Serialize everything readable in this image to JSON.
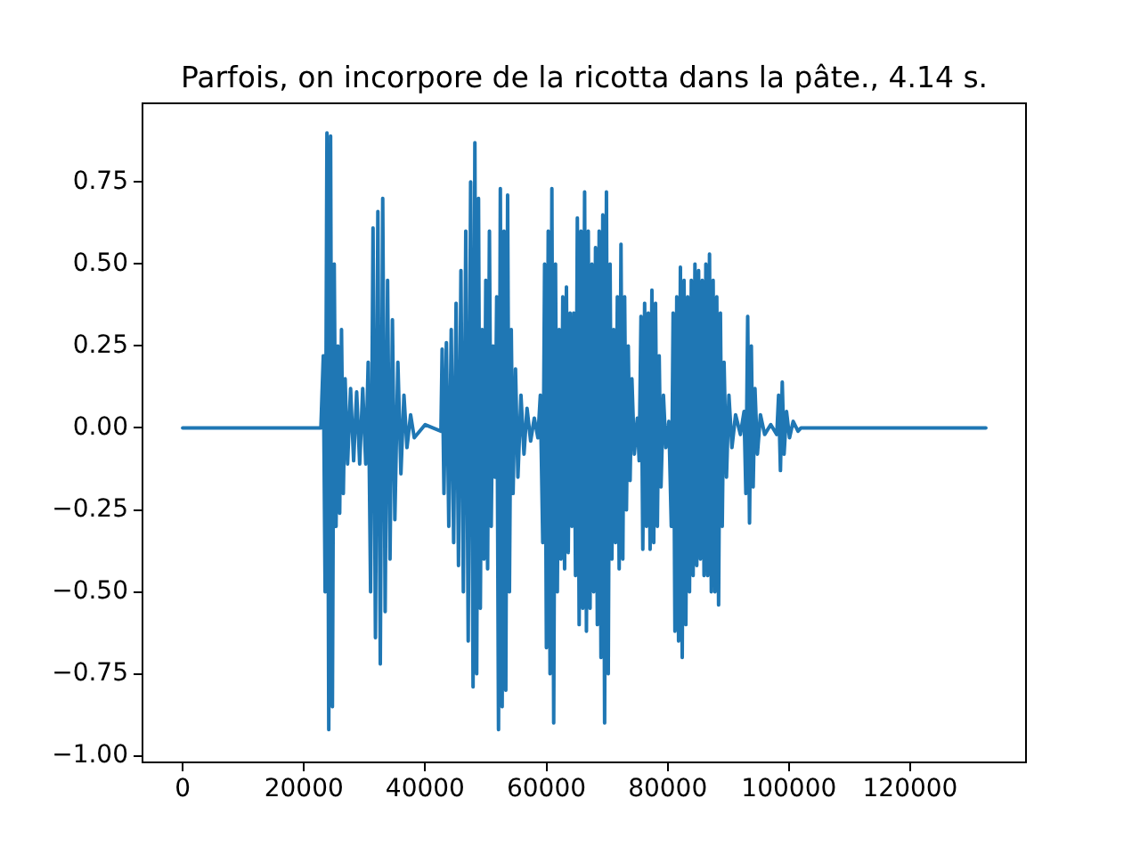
{
  "chart_data": {
    "type": "line",
    "title": "Parfois, on incorpore de la ricotta dans la pâte., 4.14 s.",
    "color": "#1f77b4",
    "x": [
      0,
      22800,
      23200,
      23500,
      23800,
      24100,
      24400,
      24700,
      25000,
      25300,
      25600,
      25900,
      26200,
      26500,
      26800,
      27200,
      27700,
      28200,
      28700,
      29200,
      29700,
      30200,
      30600,
      31000,
      31400,
      31800,
      32200,
      32600,
      33000,
      33400,
      33800,
      34200,
      34600,
      35000,
      35500,
      36000,
      36500,
      37000,
      37600,
      38200,
      40000,
      42600,
      42800,
      43100,
      43500,
      43900,
      44300,
      44700,
      45100,
      45500,
      45900,
      46300,
      46700,
      47100,
      47500,
      47900,
      48200,
      48500,
      48800,
      49100,
      49400,
      49700,
      50000,
      50300,
      50600,
      50900,
      51200,
      51500,
      51800,
      52100,
      52400,
      52700,
      53000,
      53300,
      53600,
      53900,
      54200,
      54500,
      54900,
      55300,
      55800,
      56300,
      56800,
      57400,
      58000,
      58600,
      59000,
      59400,
      59700,
      60000,
      60300,
      60600,
      60900,
      61200,
      61500,
      61800,
      62100,
      62400,
      62700,
      63000,
      63300,
      63600,
      63900,
      64200,
      64500,
      64800,
      65100,
      65400,
      65700,
      66000,
      66300,
      66600,
      66900,
      67200,
      67500,
      67800,
      68100,
      68400,
      68700,
      69000,
      69300,
      69600,
      69900,
      70200,
      70500,
      70800,
      71100,
      71400,
      71700,
      72000,
      72300,
      72600,
      72900,
      73200,
      73500,
      73800,
      74100,
      74500,
      75000,
      75300,
      75600,
      75900,
      76200,
      76500,
      76800,
      77100,
      77400,
      77700,
      78000,
      78300,
      78600,
      78900,
      79300,
      79700,
      80200,
      80600,
      80900,
      81200,
      81500,
      81800,
      82100,
      82400,
      82700,
      83000,
      83300,
      83600,
      83900,
      84200,
      84500,
      84800,
      85100,
      85400,
      85700,
      86000,
      86300,
      86600,
      86900,
      87200,
      87500,
      87800,
      88100,
      88400,
      88700,
      89000,
      89300,
      89700,
      90100,
      90600,
      91200,
      92000,
      92600,
      92900,
      93200,
      93500,
      93800,
      94100,
      94400,
      94800,
      95300,
      96000,
      97000,
      98000,
      98300,
      98600,
      98900,
      99200,
      99600,
      100100,
      100700,
      101500,
      102000,
      132480
    ],
    "values": [
      0,
      0,
      0.22,
      -0.5,
      0.9,
      -0.92,
      0.89,
      -0.85,
      0.5,
      -0.3,
      0.25,
      -0.26,
      0.3,
      -0.2,
      0.15,
      -0.11,
      0.12,
      -0.1,
      0.11,
      -0.11,
      0.12,
      -0.11,
      0.2,
      -0.5,
      0.61,
      -0.64,
      0.66,
      -0.72,
      0.7,
      -0.56,
      0.45,
      -0.4,
      0.33,
      -0.28,
      0.2,
      -0.14,
      0.1,
      -0.06,
      0.04,
      -0.03,
      0.01,
      -0.01,
      0.24,
      -0.2,
      0.26,
      -0.3,
      0.3,
      -0.35,
      0.38,
      -0.42,
      0.48,
      -0.5,
      0.6,
      -0.65,
      0.75,
      -0.79,
      0.87,
      -0.75,
      0.7,
      -0.55,
      0.3,
      -0.4,
      0.45,
      -0.43,
      0.6,
      -0.3,
      0.25,
      -0.15,
      0.4,
      -0.92,
      0.73,
      -0.85,
      0.6,
      -0.8,
      0.71,
      -0.5,
      0.3,
      -0.2,
      0.18,
      -0.15,
      0.1,
      -0.08,
      0.06,
      -0.04,
      0.03,
      -0.03,
      0.1,
      -0.35,
      0.5,
      -0.67,
      0.6,
      -0.75,
      0.73,
      -0.9,
      0.5,
      -0.5,
      0.3,
      -0.4,
      0.4,
      -0.43,
      0.43,
      -0.38,
      0.35,
      -0.3,
      0.35,
      -0.45,
      0.64,
      -0.6,
      0.6,
      -0.55,
      0.72,
      -0.62,
      0.6,
      -0.55,
      0.5,
      -0.5,
      0.55,
      -0.6,
      0.6,
      -0.7,
      0.65,
      -0.9,
      0.72,
      -0.75,
      0.5,
      -0.4,
      0.3,
      -0.35,
      0.4,
      -0.43,
      0.56,
      -0.4,
      0.4,
      -0.25,
      0.25,
      -0.16,
      0.15,
      -0.08,
      0.03,
      -0.1,
      0.34,
      -0.37,
      0.38,
      -0.3,
      0.35,
      -0.37,
      0.42,
      -0.35,
      0.38,
      -0.3,
      0.22,
      -0.18,
      0.1,
      -0.06,
      0.02,
      -0.3,
      0.35,
      -0.62,
      0.4,
      -0.65,
      0.49,
      -0.7,
      0.45,
      -0.6,
      0.4,
      -0.5,
      0.45,
      -0.45,
      0.5,
      -0.42,
      0.48,
      -0.4,
      0.45,
      -0.45,
      0.5,
      -0.45,
      0.53,
      -0.5,
      0.45,
      -0.5,
      0.4,
      -0.54,
      0.35,
      -0.3,
      0.2,
      -0.15,
      0.1,
      -0.06,
      0.04,
      -0.02,
      0.05,
      -0.2,
      0.34,
      -0.29,
      0.25,
      -0.18,
      0.12,
      -0.08,
      0.04,
      -0.02,
      0.01,
      -0.02,
      0.1,
      -0.13,
      0.14,
      -0.08,
      0.05,
      -0.03,
      0.02,
      -0.01,
      0,
      0
    ],
    "xlim": [
      -6624,
      139104
    ],
    "ylim": [
      -1.02,
      0.99
    ],
    "xticks": [
      0,
      20000,
      40000,
      60000,
      80000,
      100000,
      120000
    ],
    "yticks": [
      {
        "value": -1,
        "label": "−1.00"
      },
      {
        "value": -0.75,
        "label": "−0.75"
      },
      {
        "value": -0.5,
        "label": "−0.50"
      },
      {
        "value": -0.25,
        "label": "−0.25"
      },
      {
        "value": 0,
        "label": "0.00"
      },
      0.25,
      {
        "value": 0.5,
        "label": "0.50"
      },
      0.75
    ]
  }
}
